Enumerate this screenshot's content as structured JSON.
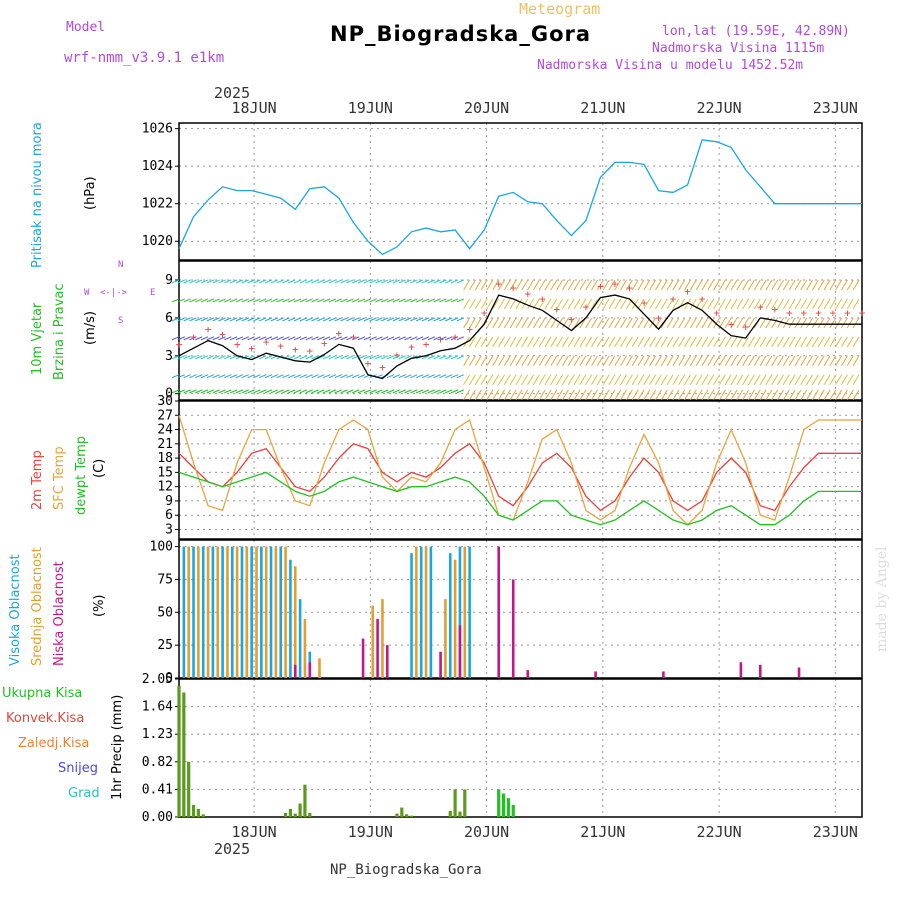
{
  "header": {
    "title": "NP_Biogradska_Gora",
    "meteogram": "Meteogram",
    "model_label": "Model",
    "model_name": "wrf-nmm_v3.9.1 e1km",
    "lonlat": "lon,lat (19.59E, 42.89N)",
    "elevation": "Nadmorska Visina 1115m",
    "model_elevation": "Nadmorska Visina u modelu 1452.52m",
    "year_top": "2025",
    "year_bottom": "2025",
    "footer": "NP_Biogradska_Gora",
    "credit": "made by Angel"
  },
  "colors": {
    "pressure": "#1aa7e0",
    "temp2m": "#e8413c",
    "sfc": "#e8a53c",
    "dew": "#22c022",
    "high_cloud": "#1aa7e0",
    "mid_cloud": "#e0a030",
    "low_cloud": "#c0178a",
    "total_precip": "#5a9a1e",
    "conv_precip": "#e8413c",
    "strat_precip": "#f08030",
    "snow": "#4a4ae0",
    "graupel": "#2ac0c0",
    "purple": "#b04bd8"
  },
  "chart_data": [
    {
      "type": "line",
      "name": "pressure",
      "labels": [
        "Pritisak na nivou mora",
        "(hPa)"
      ],
      "x_ticks": [
        "18JUN",
        "19JUN",
        "20JUN",
        "21JUN",
        "22JUN",
        "23JUN"
      ],
      "x_range_hours": [
        0,
        141
      ],
      "ylim": [
        1019,
        1026.3
      ],
      "y_ticks": [
        1020,
        1022,
        1024,
        1026
      ],
      "x": [
        0,
        3,
        6,
        9,
        12,
        15,
        18,
        21,
        24,
        27,
        30,
        33,
        36,
        39,
        42,
        45,
        48,
        51,
        54,
        57,
        60,
        63,
        66,
        69,
        72,
        75,
        78,
        81,
        84,
        87,
        90,
        93,
        96,
        99,
        102,
        105,
        108,
        111,
        114,
        117,
        120,
        123,
        126,
        129,
        132,
        135,
        138,
        141
      ],
      "values": [
        1019.6,
        1021.3,
        1022.2,
        1022.9,
        1022.7,
        1022.7,
        1022.5,
        1022.3,
        1021.7,
        1022.8,
        1022.9,
        1022.3,
        1021.0,
        1020.0,
        1019.3,
        1019.7,
        1020.5,
        1020.7,
        1020.5,
        1020.6,
        1019.6,
        1020.6,
        1022.4,
        1022.6,
        1022.1,
        1022.0,
        1021.1,
        1020.3,
        1021.1,
        1023.4,
        1024.2,
        1024.2,
        1024.1,
        1022.7,
        1022.6,
        1023.0,
        1025.4,
        1025.3,
        1025.0,
        1023.8,
        1022.9,
        1022.0,
        1022.0,
        1022.0,
        1022.0,
        1022.0,
        1022.0,
        1022.0
      ]
    },
    {
      "type": "line",
      "name": "wind",
      "labels": [
        "10m Vjetar",
        "Brzina i Pravac",
        "(m/s)"
      ],
      "compass": [
        "W",
        "E",
        "N",
        "S",
        "<-|->"
      ],
      "ylim": [
        -0.5,
        10.5
      ],
      "y_ticks": [
        0,
        3,
        6,
        9
      ],
      "x": [
        0,
        3,
        6,
        9,
        12,
        15,
        18,
        21,
        24,
        27,
        30,
        33,
        36,
        39,
        42,
        45,
        48,
        51,
        54,
        57,
        60,
        63,
        66,
        69,
        72,
        75,
        78,
        81,
        84,
        87,
        90,
        93,
        96,
        99,
        102,
        105,
        108,
        111,
        114,
        117,
        120,
        123,
        126,
        129,
        132,
        135,
        138,
        141
      ],
      "values": [
        3.0,
        3.6,
        4.2,
        3.8,
        3.0,
        2.7,
        3.2,
        2.9,
        2.6,
        2.5,
        3.1,
        3.9,
        3.6,
        1.5,
        1.2,
        2.2,
        2.8,
        3.0,
        3.4,
        3.6,
        4.2,
        5.5,
        7.8,
        7.5,
        7.0,
        6.6,
        5.8,
        5.0,
        6.0,
        7.6,
        7.8,
        7.5,
        6.3,
        5.1,
        6.6,
        7.2,
        6.6,
        5.5,
        4.6,
        4.4,
        6.0,
        5.8,
        5.5,
        5.5,
        5.5,
        5.5,
        5.5,
        5.5
      ]
    },
    {
      "type": "line",
      "name": "temperature",
      "labels": [
        "2m Temp",
        "SFC Temp",
        "dewpt Temp",
        "(C)"
      ],
      "ylim": [
        1,
        30
      ],
      "y_ticks": [
        3,
        6,
        9,
        12,
        15,
        18,
        21,
        24,
        27,
        30
      ],
      "x": [
        0,
        3,
        6,
        9,
        12,
        15,
        18,
        21,
        24,
        27,
        30,
        33,
        36,
        39,
        42,
        45,
        48,
        51,
        54,
        57,
        60,
        63,
        66,
        69,
        72,
        75,
        78,
        81,
        84,
        87,
        90,
        93,
        96,
        99,
        102,
        105,
        108,
        111,
        114,
        117,
        120,
        123,
        126,
        129,
        132,
        135,
        138,
        141
      ],
      "series": [
        {
          "name": "2m Temp",
          "values": [
            19,
            16,
            13,
            12,
            15,
            19,
            20,
            16,
            12,
            11,
            14,
            18,
            21,
            20,
            15,
            13,
            15,
            14,
            16,
            19,
            21,
            17,
            10,
            8,
            12,
            17,
            19,
            16,
            10,
            7,
            9,
            14,
            18,
            15,
            9,
            7,
            9,
            15,
            18,
            15,
            8,
            7,
            12,
            16,
            19,
            19,
            19,
            19
          ]
        },
        {
          "name": "SFC Temp",
          "values": [
            27,
            17,
            8,
            7,
            17,
            24,
            24,
            16,
            9,
            8,
            17,
            24,
            26,
            24,
            14,
            11,
            14,
            13,
            17,
            24,
            26,
            16,
            6,
            5,
            13,
            22,
            24,
            17,
            7,
            5,
            7,
            16,
            23,
            17,
            7,
            4,
            7,
            17,
            24,
            17,
            6,
            5,
            14,
            24,
            26,
            26,
            26,
            26
          ]
        },
        {
          "name": "dewpt Temp",
          "values": [
            15,
            14,
            13,
            12,
            13,
            14,
            15,
            13,
            11,
            10,
            11,
            13,
            14,
            13,
            12,
            11,
            12,
            12,
            13,
            14,
            13,
            10,
            6,
            5,
            7,
            9,
            9,
            6,
            5,
            4,
            5,
            7,
            9,
            7,
            5,
            4,
            5,
            7,
            8,
            6,
            4,
            4,
            6,
            9,
            11,
            11,
            11,
            11
          ]
        }
      ]
    },
    {
      "type": "bar",
      "name": "cloud",
      "labels": [
        "Visoka Oblacnost",
        "Srednja Oblacnost",
        "Niska Oblacnost",
        "(%)"
      ],
      "ylim": [
        0,
        105
      ],
      "y_ticks": [
        0,
        25,
        50,
        75,
        100
      ],
      "series": [
        {
          "name": "Visoka Oblacnost",
          "x": [
            1,
            3,
            5,
            7,
            9,
            11,
            13,
            15,
            17,
            19,
            21,
            23,
            25,
            27,
            48,
            50,
            52,
            56,
            58,
            60
          ],
          "values": [
            100,
            100,
            100,
            100,
            100,
            100,
            100,
            100,
            100,
            100,
            100,
            90,
            60,
            20,
            95,
            100,
            100,
            95,
            100,
            100
          ]
        },
        {
          "name": "Srednja Oblacnost",
          "x": [
            2,
            4,
            6,
            8,
            10,
            12,
            14,
            16,
            18,
            20,
            22,
            24,
            26,
            29,
            40,
            42,
            49,
            51,
            55,
            57,
            59
          ],
          "values": [
            100,
            100,
            100,
            100,
            100,
            100,
            100,
            100,
            100,
            100,
            100,
            85,
            45,
            15,
            55,
            60,
            100,
            100,
            60,
            90,
            100
          ]
        },
        {
          "name": "Niska Oblacnost",
          "x": [
            24,
            27,
            38,
            41,
            43,
            54,
            58,
            66,
            69,
            72,
            86,
            100,
            116,
            120,
            128
          ],
          "values": [
            10,
            12,
            30,
            45,
            25,
            20,
            40,
            100,
            75,
            6,
            5,
            5,
            12,
            10,
            8
          ]
        }
      ]
    },
    {
      "type": "bar",
      "name": "precipitation",
      "labels": [
        "Ukupna Kisa",
        "Konvek.Kisa",
        "Zaledj.Kisa",
        "Snijeg",
        "Grad",
        "1hr Precip (mm)"
      ],
      "ylim": [
        0,
        2.05
      ],
      "y_ticks": [
        0,
        0.41,
        0.82,
        1.23,
        1.64,
        2.05
      ],
      "series": [
        {
          "name": "Ukupna Kisa",
          "x": [
            0,
            1,
            2,
            3,
            4,
            5,
            22,
            23,
            24,
            25,
            26,
            27,
            45,
            46,
            47,
            48,
            56,
            57,
            58,
            59
          ],
          "values": [
            1.95,
            1.85,
            0.82,
            0.18,
            0.12,
            0.04,
            0.06,
            0.12,
            0.05,
            0.2,
            0.48,
            0.06,
            0.05,
            0.14,
            0.04,
            0.02,
            0.09,
            0.41,
            0.08,
            0.41
          ]
        },
        {
          "name": "Grad",
          "x": [
            66,
            67,
            68,
            69
          ],
          "values": [
            0.41,
            0.35,
            0.28,
            0.18
          ]
        }
      ]
    }
  ]
}
